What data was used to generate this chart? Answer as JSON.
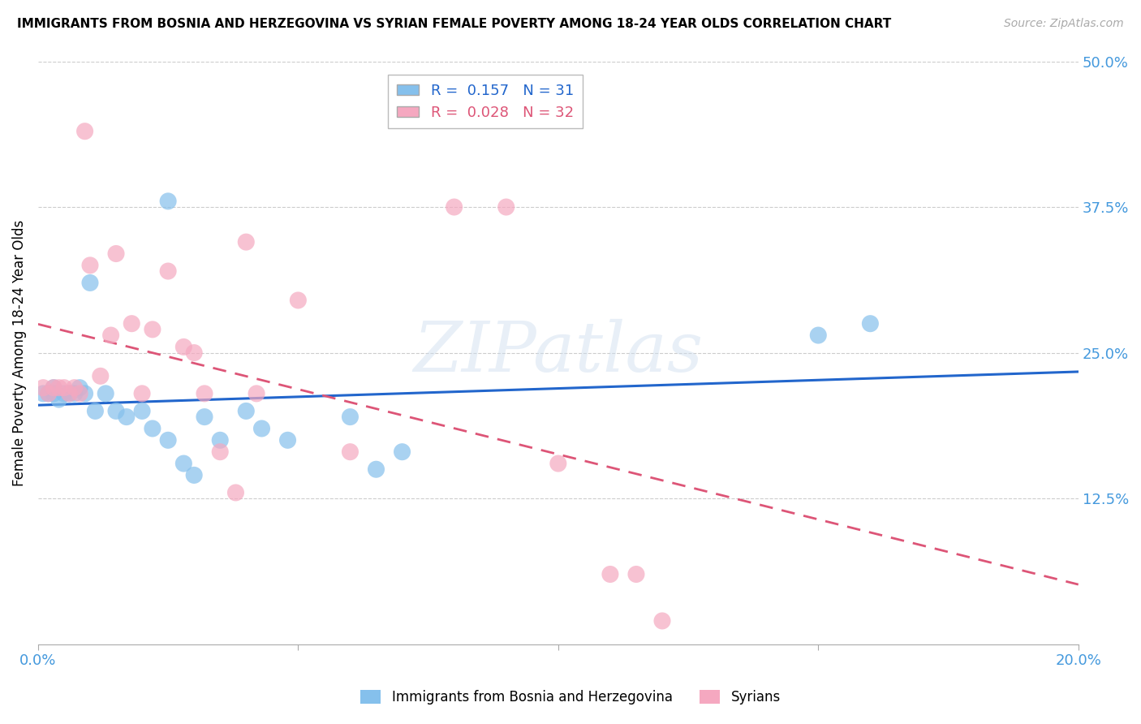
{
  "title": "IMMIGRANTS FROM BOSNIA AND HERZEGOVINA VS SYRIAN FEMALE POVERTY AMONG 18-24 YEAR OLDS CORRELATION CHART",
  "source": "Source: ZipAtlas.com",
  "ylabel": "Female Poverty Among 18-24 Year Olds",
  "xlim": [
    0.0,
    0.2
  ],
  "ylim": [
    0.0,
    0.5
  ],
  "xticks": [
    0.0,
    0.05,
    0.1,
    0.15,
    0.2
  ],
  "xtick_labels": [
    "0.0%",
    "",
    "",
    "",
    "20.0%"
  ],
  "yticks_right": [
    0.0,
    0.125,
    0.25,
    0.375,
    0.5
  ],
  "ytick_labels_right": [
    "",
    "12.5%",
    "25.0%",
    "37.5%",
    "50.0%"
  ],
  "bosnia_R": 0.157,
  "bosnia_N": 31,
  "syrian_R": 0.028,
  "syrian_N": 32,
  "bosnia_color": "#85C0EC",
  "syrian_color": "#F5A8C0",
  "bosnia_line_color": "#2266CC",
  "syrian_line_color": "#DD5577",
  "tick_label_color": "#4499DD",
  "watermark": "ZIPatlas",
  "bosnia_x": [
    0.001,
    0.002,
    0.003,
    0.003,
    0.004,
    0.005,
    0.006,
    0.007,
    0.008,
    0.009,
    0.01,
    0.011,
    0.013,
    0.015,
    0.017,
    0.02,
    0.022,
    0.025,
    0.028,
    0.03,
    0.032,
    0.035,
    0.04,
    0.043,
    0.048,
    0.06,
    0.065,
    0.07,
    0.025,
    0.15,
    0.16
  ],
  "bosnia_y": [
    0.215,
    0.215,
    0.215,
    0.22,
    0.21,
    0.215,
    0.215,
    0.215,
    0.22,
    0.215,
    0.31,
    0.2,
    0.215,
    0.2,
    0.195,
    0.2,
    0.185,
    0.175,
    0.155,
    0.145,
    0.195,
    0.175,
    0.2,
    0.185,
    0.175,
    0.195,
    0.15,
    0.165,
    0.38,
    0.265,
    0.275
  ],
  "syrian_x": [
    0.001,
    0.002,
    0.003,
    0.004,
    0.005,
    0.006,
    0.007,
    0.008,
    0.009,
    0.01,
    0.012,
    0.014,
    0.015,
    0.018,
    0.02,
    0.022,
    0.025,
    0.028,
    0.03,
    0.032,
    0.035,
    0.038,
    0.04,
    0.042,
    0.05,
    0.06,
    0.08,
    0.09,
    0.1,
    0.11,
    0.115,
    0.12
  ],
  "syrian_y": [
    0.22,
    0.215,
    0.22,
    0.22,
    0.22,
    0.215,
    0.22,
    0.215,
    0.44,
    0.325,
    0.23,
    0.265,
    0.335,
    0.275,
    0.215,
    0.27,
    0.32,
    0.255,
    0.25,
    0.215,
    0.165,
    0.13,
    0.345,
    0.215,
    0.295,
    0.165,
    0.375,
    0.375,
    0.155,
    0.06,
    0.06,
    0.02
  ]
}
